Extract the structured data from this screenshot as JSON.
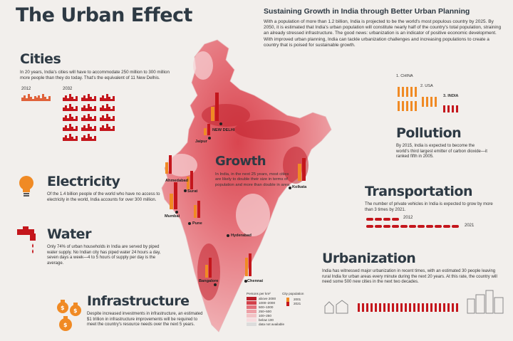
{
  "title": "The Urban Effect",
  "intro": {
    "heading": "Sustaining Growth in India through Better Urban Planning",
    "text": "With a population of more than 1.2 billion, India is projected to be the world's most populous country by 2025. By 2050, it is estimated that India's urban population will constitute nearly half of the country's total population, straining an already stressed infrastructure. The good news: urbanization is an indicator of positive economic development. With improved urban planning, India can tackle urbanization challenges and increasing populations to create a country that is poised for sustainable growth."
  },
  "cities": {
    "heading": "Cities",
    "text": "In 20 years, India's cities will have to accommodate 250 million to 300 million more people than they do today. That's the equivalent of 11 New Delhis.",
    "year_start": "2012",
    "year_end": "2032"
  },
  "electricity": {
    "heading": "Electricity",
    "text": "Of the 1.4 billion people of the world who have no access to electricity in the world, India accounts for over 300 million."
  },
  "water": {
    "heading": "Water",
    "text": "Only 74% of urban households in India are served by piped water supply. No Indian city has piped water 24 hours a day, seven days a week—4 to 5 hours of supply per day is the average."
  },
  "infrastructure": {
    "heading": "Infrastructure",
    "text": "Despite increased investments in infrastructure, an estimated $1 trillion in infrastructure improvements will be required to meet the country's resource needs over the next 5 years."
  },
  "growth": {
    "heading": "Growth",
    "text": "In India, in the next 25 years, most cities are likely to double their size in terms of population and more than double in area."
  },
  "pollution": {
    "heading": "Pollution",
    "rank1": "1. CHINA",
    "rank2": "2. USA",
    "rank3": "3. INDIA",
    "text": "By 2015, India is expected to become the world's third largest emitter of carbon dioxide—it ranked fifth in 2005."
  },
  "transportation": {
    "heading": "Transportation",
    "text": "The number of private vehicles in India is expected to grow by more than 3 times by 2021.",
    "year_start": "2012",
    "year_end": "2021"
  },
  "urbanization": {
    "heading": "Urbanization",
    "text": "India has witnessed major urbanization in recent times, with an estimated 30 people leaving rural India for urban areas every minute during the next 20 years. At this rate, the country will need some 500 new cities in the next two decades."
  },
  "map": {
    "cities": [
      "NEW DELHI",
      "Jaipur",
      "Ahmedabad",
      "Surat",
      "Mumbai",
      "Pune",
      "Hyderabad",
      "Bangalore",
      "Chennai",
      "Kolkata"
    ],
    "density_legend": {
      "title": "Persons per km²",
      "items": [
        {
          "label": "above 2000",
          "color": "#b81f2a"
        },
        {
          "label": "1000–2000",
          "color": "#d3404a"
        },
        {
          "label": "500–1000",
          "color": "#e3707a"
        },
        {
          "label": "250–500",
          "color": "#eda0a6"
        },
        {
          "label": "100–250",
          "color": "#f2c2c5"
        },
        {
          "label": "below 100",
          "color": "#f7dcde"
        },
        {
          "label": "data not available",
          "color": "#dcdcdc"
        }
      ]
    },
    "pop_legend": {
      "title": "City population",
      "items": [
        {
          "label": "2001",
          "color": "#f08a24"
        },
        {
          "label": "2021",
          "color": "#c4161c"
        }
      ]
    }
  }
}
